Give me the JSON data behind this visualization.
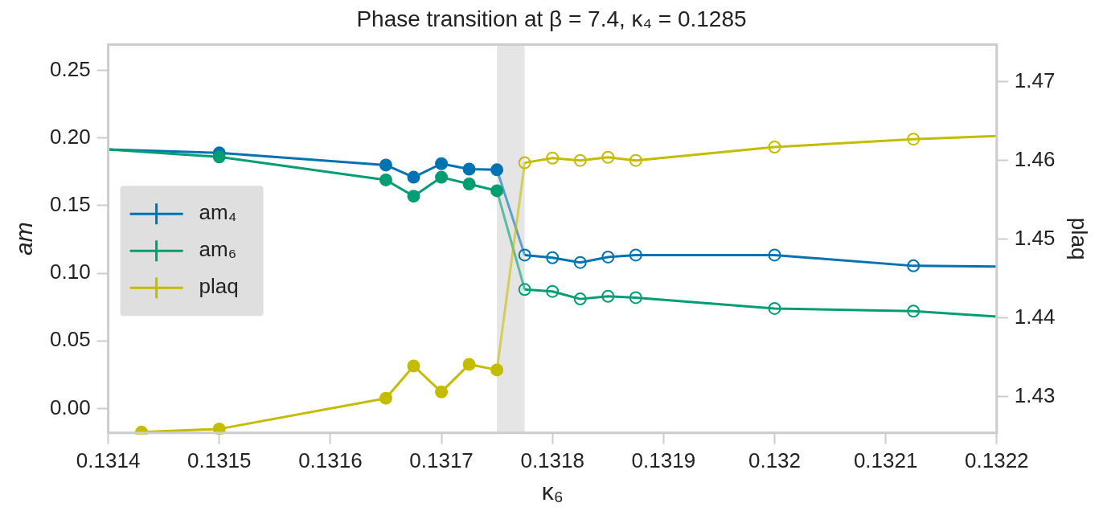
{
  "chart_data": {
    "type": "line",
    "title": "Phase transition at β = 7.4, κ₄ = 0.1285",
    "xlabel": "κ₆",
    "ylabel": "am",
    "y2label": "plaq",
    "x": [
      0.1314,
      0.1315,
      0.13165,
      0.131675,
      0.1317,
      0.131725,
      0.13175,
      0.131775,
      0.1318,
      0.131825,
      0.13185,
      0.131875,
      0.132,
      0.132125,
      0.1322
    ],
    "series": [
      {
        "name": "am₄",
        "color": "#0173b2",
        "values": [
          0.1916,
          0.189,
          0.18,
          0.171,
          0.181,
          0.177,
          0.1765,
          0.1135,
          0.1115,
          0.108,
          0.112,
          0.1135,
          0.1135,
          0.1055,
          0.105
        ]
      },
      {
        "name": "am₆",
        "color": "#029e73",
        "values": [
          0.1916,
          0.186,
          0.169,
          0.157,
          0.171,
          0.166,
          0.161,
          0.088,
          0.0866,
          0.081,
          0.083,
          0.082,
          0.074,
          0.072,
          0.068
        ]
      },
      {
        "name": "plaq",
        "color": "#c4bc00",
        "axis": "y2",
        "x": [
          0.13143,
          0.1315,
          0.13165,
          0.131675,
          0.1317,
          0.131725,
          0.13175,
          0.131775,
          0.1318,
          0.131825,
          0.13185,
          0.131875,
          0.132,
          0.132125,
          0.1322
        ],
        "values": [
          1.4255,
          1.4259,
          1.4298,
          1.4339,
          1.4306,
          1.4341,
          1.4334,
          1.4597,
          1.4603,
          1.46,
          1.4604,
          1.46,
          1.4617,
          1.4627,
          1.4631
        ]
      }
    ],
    "bands": [
      {
        "axis": "x",
        "from": 0.13175,
        "to": 0.131775,
        "color": "#e5e5e5"
      }
    ],
    "xlim": [
      0.1314,
      0.1322
    ],
    "xticks": [
      0.1314,
      0.1315,
      0.1316,
      0.1317,
      0.1318,
      0.1319,
      0.132,
      0.1321,
      0.1322
    ],
    "ylim": [
      -0.018,
      0.269
    ],
    "yticks": [
      {
        "value": 0,
        "label": "0.00"
      },
      0.05,
      {
        "value": 0.1,
        "label": "0.10"
      },
      0.15,
      {
        "value": 0.2,
        "label": "0.20"
      },
      0.25
    ],
    "y2lim": [
      1.4254,
      1.4747
    ],
    "y2ticks": [
      1.43,
      1.44,
      1.45,
      1.46,
      1.47
    ],
    "grid": false,
    "legend": "left",
    "marker": "circle",
    "line_style": "solid"
  }
}
